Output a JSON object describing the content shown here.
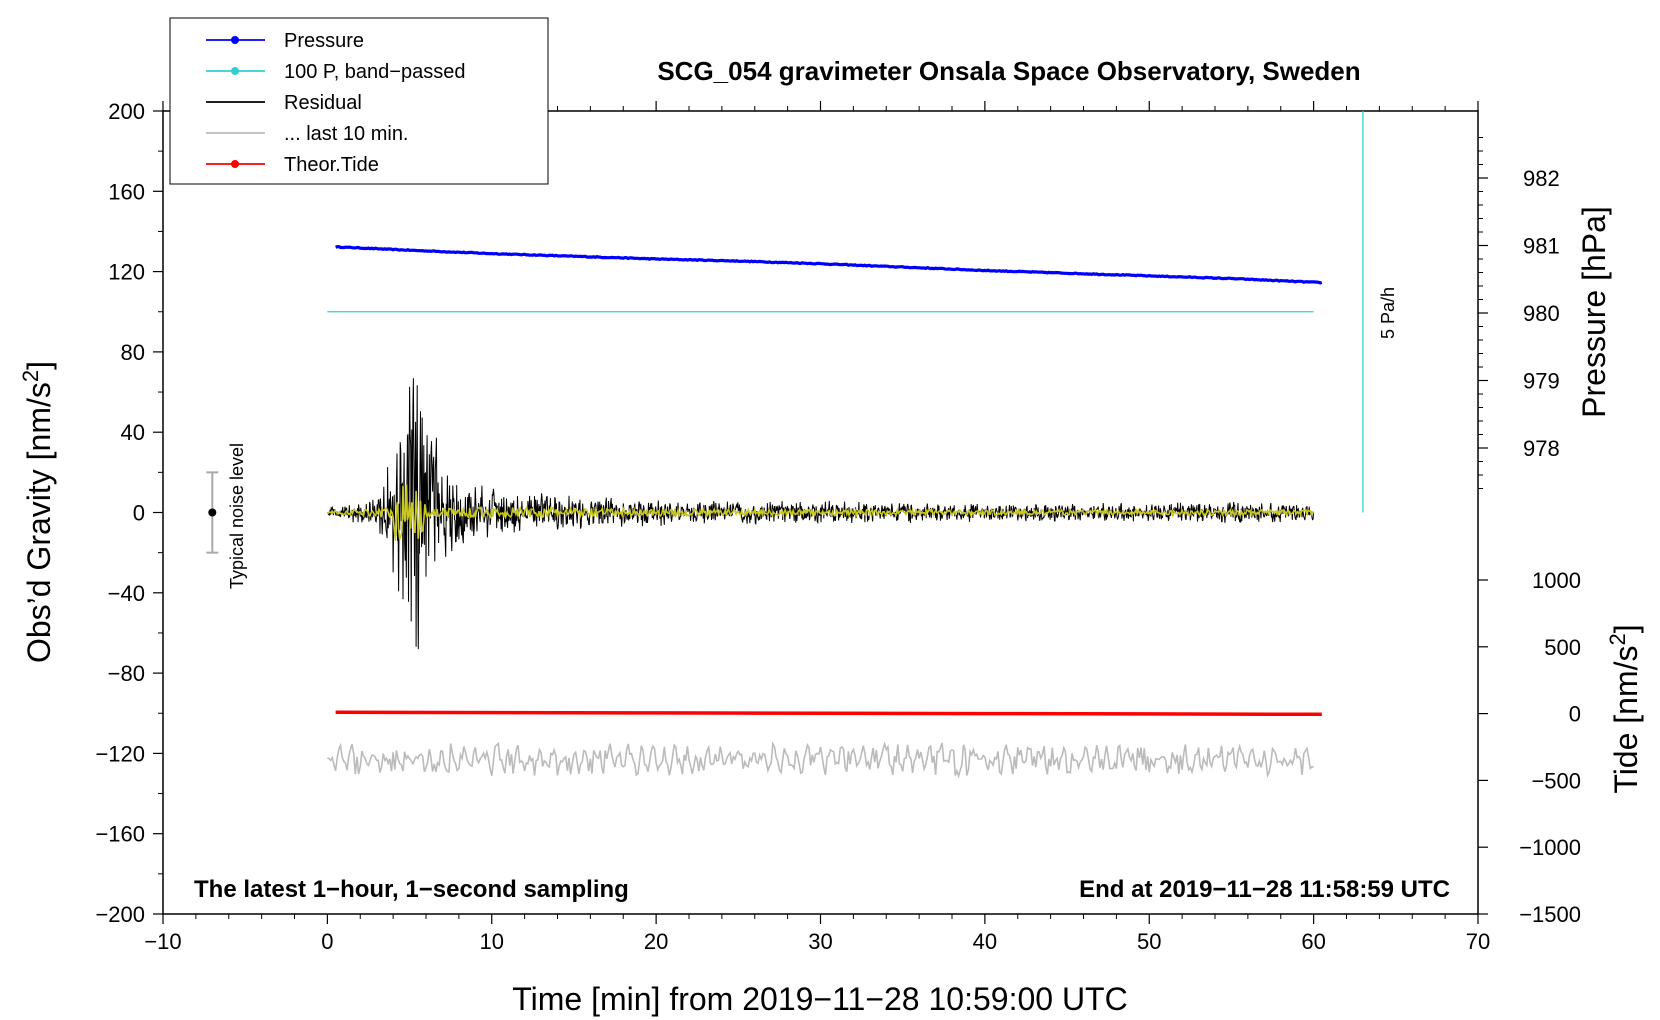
{
  "chart_data": {
    "type": "line",
    "title": "SCG_054 gravimeter Onsala Space Observatory, Sweden",
    "xlabel": "Time [min] from 2019−11−28 10:59:00 UTC",
    "ylabel_left_main": "Obs’d Gravity [nm/s",
    "ylabel_left_sup": "2",
    "ylabel_left_end": "]",
    "ylabel_right_top": "Pressure [hPa]",
    "ylabel_right_bottom_main": "Tide [nm/s",
    "ylabel_right_bottom_sup": "2",
    "ylabel_right_bottom_end": "]",
    "xlim": [
      -10,
      70
    ],
    "ylim_left": [
      -200,
      200
    ],
    "x_ticks": [
      -10,
      0,
      10,
      20,
      30,
      40,
      50,
      60,
      70
    ],
    "x_tick_labels": [
      "−10",
      "0",
      "10",
      "20",
      "30",
      "40",
      "50",
      "60",
      "70"
    ],
    "y_ticks_left": [
      200,
      160,
      120,
      80,
      40,
      0,
      -40,
      -80,
      -120,
      -160,
      -200
    ],
    "y_tick_labels_left": [
      "200",
      "160",
      "120",
      "80",
      "40",
      "0",
      "−40",
      "−80",
      "−120",
      "−160",
      "−200"
    ],
    "pressure_axis": {
      "ticks": [
        982,
        981,
        980,
        979,
        978
      ],
      "tick_labels": [
        "982",
        "981",
        "980",
        "979",
        "978"
      ],
      "range_hpa": [
        977.0,
        983.0
      ]
    },
    "tide_axis": {
      "ticks": [
        1000,
        500,
        0,
        -500,
        -1000,
        -1500
      ],
      "tick_labels": [
        "1000",
        "500",
        "0",
        "−500",
        "−1000",
        "−1500"
      ],
      "range": [
        -1500,
        1500
      ]
    },
    "legend": [
      {
        "label": "Pressure",
        "color": "#0000ff",
        "marker": true
      },
      {
        "label": "100 P, band−passed",
        "color": "#30d0d0",
        "marker": true
      },
      {
        "label": "Residual",
        "color": "#000000",
        "marker": false
      },
      {
        "label": "... last 10 min.",
        "color": "#bbbbbb",
        "marker": false
      },
      {
        "label": "Theor.Tide",
        "color": "#ff0000",
        "marker": true
      }
    ],
    "series": [
      {
        "name": "Pressure",
        "axis": "pressure_hPa",
        "color": "#0000ff",
        "x": [
          0.5,
          5,
          10,
          15,
          20,
          25,
          30,
          35,
          40,
          45,
          50,
          55,
          60.5
        ],
        "y": [
          980.98,
          980.93,
          980.88,
          980.84,
          980.8,
          980.77,
          980.73,
          980.68,
          980.63,
          980.59,
          980.55,
          980.51,
          980.45
        ]
      },
      {
        "name": "100 P, band-passed",
        "axis": "gravity",
        "color": "#30d0d0",
        "x": [
          0,
          60
        ],
        "y": [
          100,
          100
        ]
      },
      {
        "name": "Residual",
        "axis": "gravity",
        "color": "#000000",
        "x_range": [
          0,
          60
        ],
        "baseline": 0,
        "envelope": {
          "x": [
            0,
            3,
            4.5,
            5.2,
            6,
            8,
            10,
            15,
            20,
            30,
            40,
            50,
            55,
            60
          ],
          "amp": [
            3,
            8,
            45,
            85,
            55,
            18,
            14,
            9,
            7,
            6,
            5,
            5,
            6,
            5
          ]
        }
      },
      {
        "name": "Theor.Tide",
        "axis": "tide",
        "color": "#ff0000",
        "x": [
          0.5,
          20,
          40,
          60.5
        ],
        "y": [
          10,
          5,
          0,
          -5
        ]
      },
      {
        "name": "... last 10 min.",
        "axis": "gravity",
        "color": "#bbbbbb",
        "x_range": [
          0,
          60
        ],
        "baseline": -123,
        "amp": 7
      }
    ],
    "noise_bar": {
      "x": -7,
      "y": 0,
      "low": -20,
      "high": 20,
      "label": "Typical noise level"
    },
    "scale_bar": {
      "x": 63,
      "label": "5 Pa/h"
    },
    "note_left": "The latest 1−hour, 1−second sampling",
    "note_right": "End at 2019−11−28 11:58:59 UTC"
  }
}
